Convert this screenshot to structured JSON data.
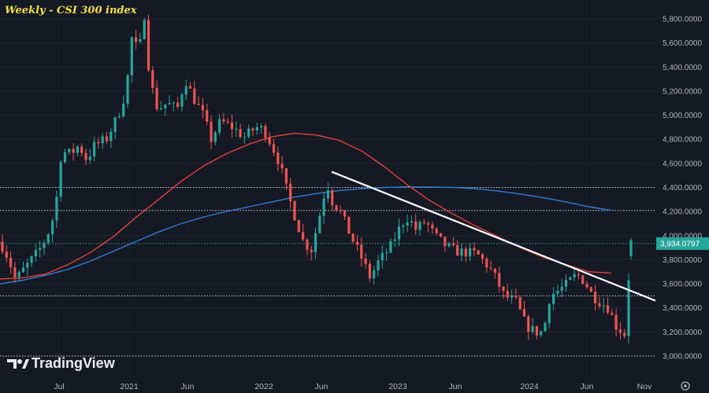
{
  "chart_data": {
    "type": "candlestick",
    "title": "Weekly - CSI 300 index",
    "ylim": [
      2950,
      5950
    ],
    "y_ticks": [
      "5,800.0000",
      "5,600.0000",
      "5,400.0000",
      "5,200.0000",
      "5,000.0000",
      "4,800.0000",
      "4,600.0000",
      "4,400.0000",
      "4,200.0000",
      "4,000.0000",
      "3,800.0000",
      "3,600.0000",
      "3,400.0000",
      "3,200.0000",
      "3,000.0000"
    ],
    "x_ticks": [
      "Jul",
      "2021",
      "Jun",
      "2022",
      "Jun",
      "2023",
      "Jun",
      "2024",
      "Jun",
      "Nov"
    ],
    "last_price": 3934.0797,
    "last_price_label": "3,934.0797",
    "horizontal_levels": [
      4400,
      4210,
      3500
    ],
    "trendline": {
      "start": [
        "2022-06",
        4530
      ],
      "end": [
        "2024-11",
        3460
      ],
      "color": "#ffffff"
    },
    "moving_average_fast": {
      "color": "#e5403a",
      "points": [
        3640,
        3650,
        3680,
        3760,
        3860,
        3990,
        4150,
        4300,
        4450,
        4580,
        4680,
        4760,
        4820,
        4850,
        4835,
        4790,
        4700,
        4570,
        4420,
        4290,
        4180,
        4080,
        3990,
        3900,
        3820,
        3760,
        3700,
        3690
      ]
    },
    "moving_average_slow": {
      "color": "#2f7cd3",
      "points": [
        3600,
        3630,
        3670,
        3720,
        3790,
        3870,
        3950,
        4030,
        4100,
        4155,
        4200,
        4240,
        4280,
        4320,
        4350,
        4375,
        4390,
        4400,
        4405,
        4404,
        4400,
        4390,
        4370,
        4345,
        4315,
        4280,
        4240,
        4210
      ]
    },
    "brand": "TradingView",
    "colors": {
      "up": "#26a69a",
      "down": "#ef5350",
      "background": "#151924"
    }
  }
}
